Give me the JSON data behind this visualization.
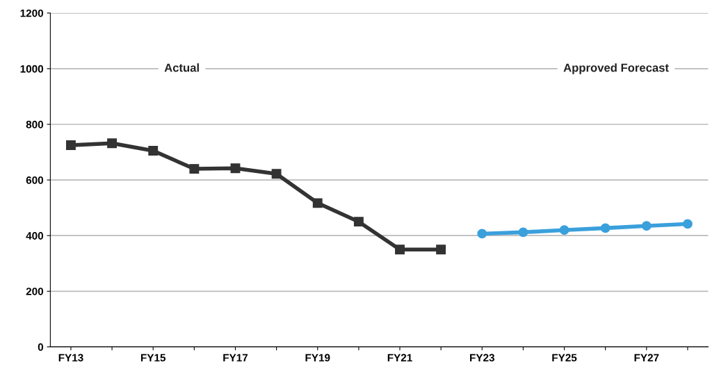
{
  "chart_data": {
    "type": "line",
    "categories": [
      "FY13",
      null,
      "FY15",
      null,
      "FY17",
      null,
      "FY19",
      null,
      "FY21",
      null,
      "FY23",
      null,
      "FY25",
      null,
      "FY27",
      null
    ],
    "series": [
      {
        "color": "#333333",
        "marker": "square",
        "values": [
          725,
          732,
          705,
          640,
          642,
          622,
          517,
          450,
          350,
          350,
          null,
          null,
          null,
          null,
          null,
          null
        ]
      },
      {
        "color": "#3aa0dc",
        "marker": "circle",
        "values": [
          null,
          null,
          null,
          null,
          null,
          null,
          null,
          null,
          null,
          null,
          407,
          412,
          420,
          427,
          435,
          442
        ]
      }
    ],
    "ylim": [
      0,
      1200
    ],
    "yticks": [
      0,
      200,
      400,
      600,
      800,
      1000,
      1200
    ],
    "grid": "y",
    "legend": false,
    "line_style": "solid",
    "annotations": [
      "Actual",
      "Approved Forecast"
    ]
  }
}
